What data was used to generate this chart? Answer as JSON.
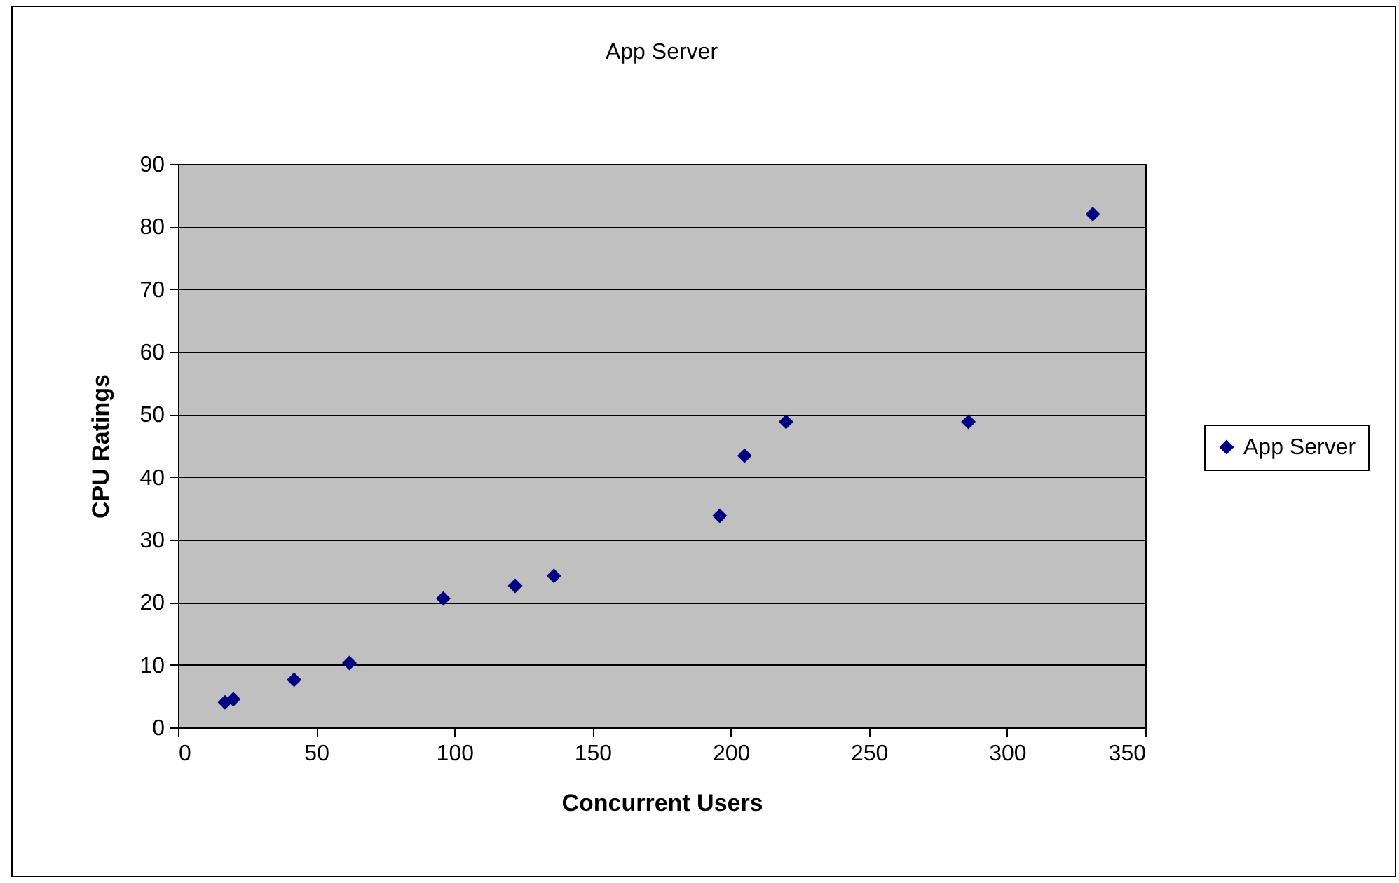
{
  "chart_data": {
    "type": "scatter",
    "title": "App Server",
    "xlabel": "Concurrent Users",
    "ylabel": "CPU Ratings",
    "x": [
      17,
      20,
      42,
      62,
      96,
      122,
      136,
      196,
      205,
      220,
      286,
      331
    ],
    "series": [
      {
        "name": "App Server",
        "color": "#000080",
        "values": [
          4,
          4.5,
          7.6,
          10.3,
          20.6,
          22.6,
          24.2,
          33.8,
          43.4,
          48.8,
          48.8,
          82
        ]
      }
    ],
    "xlim": [
      0,
      350
    ],
    "xticks": [
      0,
      50,
      100,
      150,
      200,
      250,
      300,
      350
    ],
    "ylim": [
      0,
      90
    ],
    "yticks": [
      0,
      10,
      20,
      30,
      40,
      50,
      60,
      70,
      80,
      90
    ],
    "grid": "y",
    "legend": "right",
    "marker": "diamond"
  }
}
